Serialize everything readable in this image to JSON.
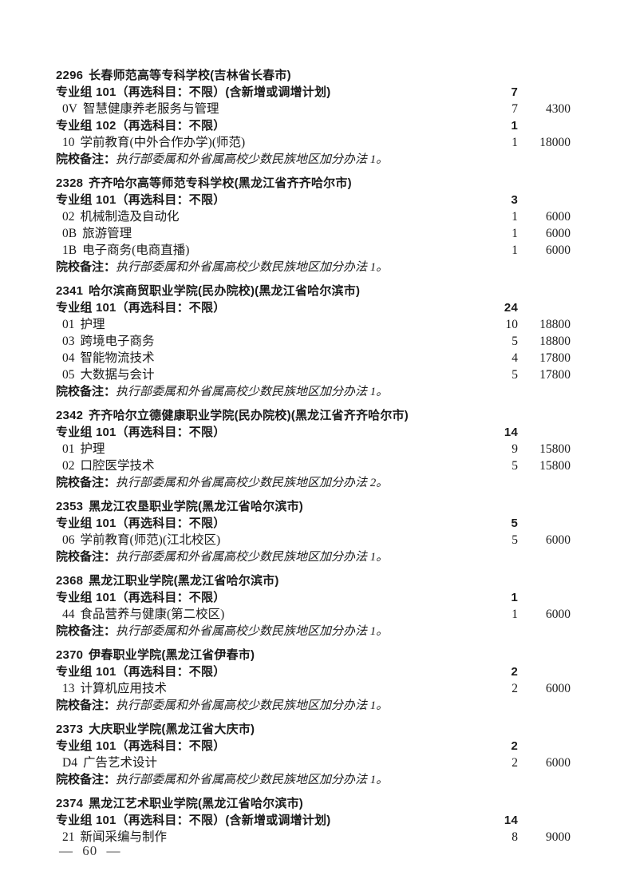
{
  "page": {
    "footer": "— 60 —"
  },
  "schools": [
    {
      "code": "2296",
      "name": "长春师范高等专科学校(吉林省长春市)",
      "groups": [
        {
          "label": "专业组 101（再选科目：不限）(含新增或调增计划)",
          "count": "7",
          "majors": [
            {
              "code": "0V",
              "name": "智慧健康养老服务与管理",
              "count": "7",
              "fee": "4300"
            }
          ]
        },
        {
          "label": "专业组 102（再选科目：不限）",
          "count": "1",
          "majors": [
            {
              "code": "10",
              "name": "学前教育(中外合作办学)(师范)",
              "count": "1",
              "fee": "18000"
            }
          ]
        }
      ],
      "remark_label": "院校备注：",
      "remark": "执行部委属和外省属高校少数民族地区加分办法 1。"
    },
    {
      "code": "2328",
      "name": "齐齐哈尔高等师范专科学校(黑龙江省齐齐哈尔市)",
      "groups": [
        {
          "label": "专业组 101（再选科目：不限）",
          "count": "3",
          "majors": [
            {
              "code": "02",
              "name": "机械制造及自动化",
              "count": "1",
              "fee": "6000"
            },
            {
              "code": "0B",
              "name": "旅游管理",
              "count": "1",
              "fee": "6000"
            },
            {
              "code": "1B",
              "name": "电子商务(电商直播)",
              "count": "1",
              "fee": "6000"
            }
          ]
        }
      ],
      "remark_label": "院校备注：",
      "remark": "执行部委属和外省属高校少数民族地区加分办法 1。"
    },
    {
      "code": "2341",
      "name": "哈尔滨商贸职业学院(民办院校)(黑龙江省哈尔滨市)",
      "groups": [
        {
          "label": "专业组 101（再选科目：不限）",
          "count": "24",
          "majors": [
            {
              "code": "01",
              "name": "护理",
              "count": "10",
              "fee": "18800"
            },
            {
              "code": "03",
              "name": "跨境电子商务",
              "count": "5",
              "fee": "18800"
            },
            {
              "code": "04",
              "name": "智能物流技术",
              "count": "4",
              "fee": "17800"
            },
            {
              "code": "05",
              "name": "大数据与会计",
              "count": "5",
              "fee": "17800"
            }
          ]
        }
      ],
      "remark_label": "院校备注：",
      "remark": "执行部委属和外省属高校少数民族地区加分办法 1。"
    },
    {
      "code": "2342",
      "name": "齐齐哈尔立德健康职业学院(民办院校)(黑龙江省齐齐哈尔市)",
      "groups": [
        {
          "label": "专业组 101（再选科目：不限）",
          "count": "14",
          "majors": [
            {
              "code": "01",
              "name": "护理",
              "count": "9",
              "fee": "15800"
            },
            {
              "code": "02",
              "name": "口腔医学技术",
              "count": "5",
              "fee": "15800"
            }
          ]
        }
      ],
      "remark_label": "院校备注：",
      "remark": "执行部委属和外省属高校少数民族地区加分办法 2。"
    },
    {
      "code": "2353",
      "name": "黑龙江农垦职业学院(黑龙江省哈尔滨市)",
      "groups": [
        {
          "label": "专业组 101（再选科目：不限）",
          "count": "5",
          "majors": [
            {
              "code": "06",
              "name": "学前教育(师范)(江北校区)",
              "count": "5",
              "fee": "6000"
            }
          ]
        }
      ],
      "remark_label": "院校备注：",
      "remark": "执行部委属和外省属高校少数民族地区加分办法 1。"
    },
    {
      "code": "2368",
      "name": "黑龙江职业学院(黑龙江省哈尔滨市)",
      "groups": [
        {
          "label": "专业组 101（再选科目：不限）",
          "count": "1",
          "majors": [
            {
              "code": "44",
              "name": "食品营养与健康(第二校区)",
              "count": "1",
              "fee": "6000"
            }
          ]
        }
      ],
      "remark_label": "院校备注：",
      "remark": "执行部委属和外省属高校少数民族地区加分办法 1。"
    },
    {
      "code": "2370",
      "name": "伊春职业学院(黑龙江省伊春市)",
      "groups": [
        {
          "label": "专业组 101（再选科目：不限）",
          "count": "2",
          "majors": [
            {
              "code": "13",
              "name": "计算机应用技术",
              "count": "2",
              "fee": "6000"
            }
          ]
        }
      ],
      "remark_label": "院校备注：",
      "remark": "执行部委属和外省属高校少数民族地区加分办法 1。"
    },
    {
      "code": "2373",
      "name": "大庆职业学院(黑龙江省大庆市)",
      "groups": [
        {
          "label": "专业组 101（再选科目：不限）",
          "count": "2",
          "majors": [
            {
              "code": "D4",
              "name": "广告艺术设计",
              "count": "2",
              "fee": "6000"
            }
          ]
        }
      ],
      "remark_label": "院校备注：",
      "remark": "执行部委属和外省属高校少数民族地区加分办法 1。"
    },
    {
      "code": "2374",
      "name": "黑龙江艺术职业学院(黑龙江省哈尔滨市)",
      "groups": [
        {
          "label": "专业组 101（再选科目：不限）(含新增或调增计划)",
          "count": "14",
          "majors": [
            {
              "code": "21",
              "name": "新闻采编与制作",
              "count": "8",
              "fee": "9000"
            }
          ]
        }
      ]
    }
  ]
}
